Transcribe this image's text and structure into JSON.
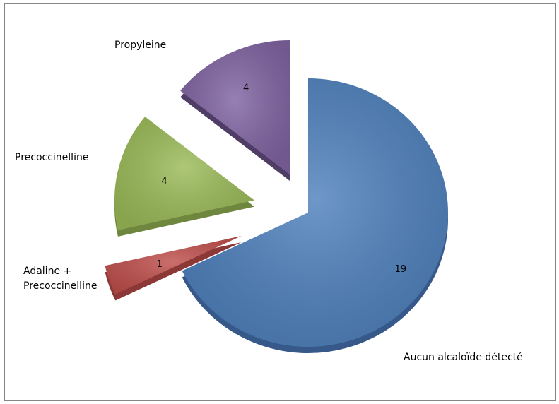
{
  "chart_data": {
    "type": "pie",
    "title": "",
    "exploded": true,
    "three_d": true,
    "start_angle_deg": 0,
    "direction": "clockwise",
    "slices": [
      {
        "label": "Aucun alcaloïde détecté",
        "value": 19,
        "color": "#4F81BD",
        "side": "#36598A"
      },
      {
        "label": "Adaline + Precoccinelline",
        "label_lines": [
          "Adaline +",
          "Precoccinelline"
        ],
        "value": 1,
        "color": "#C0504D",
        "side": "#8C3836"
      },
      {
        "label": "Precoccinelline",
        "value": 4,
        "color": "#9BBB59",
        "side": "#6E863E"
      },
      {
        "label": "Propyleine",
        "value": 4,
        "color": "#8064A2",
        "side": "#4F3D66"
      }
    ],
    "legend": "none"
  }
}
